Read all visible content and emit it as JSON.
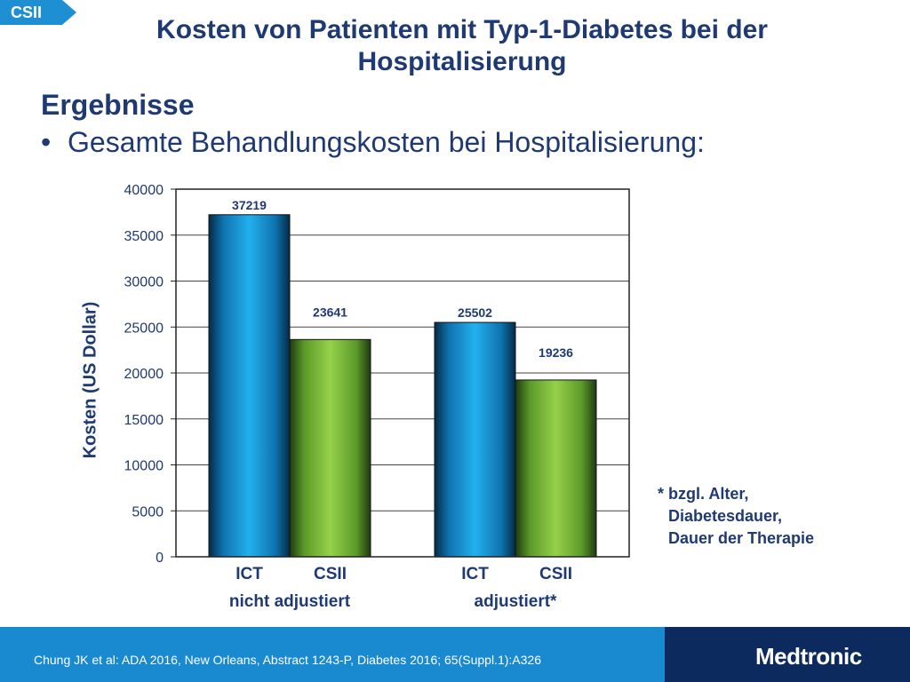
{
  "header": {
    "tag": "CSII",
    "title": "Kosten von Patienten mit Typ-1-Diabetes bei der Hospitalisierung"
  },
  "content": {
    "section_heading": "Ergebnisse",
    "bullet": "Gesamte Behandlungskosten bei Hospitalisierung:",
    "footnote": [
      "* bzgl. Alter,",
      "Diabetesdauer,",
      "Dauer der Therapie"
    ]
  },
  "chart_data": {
    "type": "bar",
    "title": "",
    "ylabel": "Kosten (US Dollar)",
    "ylim": [
      0,
      40000
    ],
    "yticks": [
      0,
      5000,
      10000,
      15000,
      20000,
      25000,
      30000,
      35000,
      40000
    ],
    "grid": true,
    "groups": [
      {
        "label": "nicht adjustiert",
        "categories": [
          "ICT",
          "CSII"
        ],
        "values": [
          37219,
          23641
        ]
      },
      {
        "label": "adjustiert*",
        "categories": [
          "ICT",
          "CSII"
        ],
        "values": [
          25502,
          19236
        ]
      }
    ],
    "colors": {
      "ICT": "#1aa3e0",
      "CSII": "#8cc63f"
    }
  },
  "footer": {
    "citation": "Chung JK et al: ADA 2016, New Orleans, Abstract 1243-P, Diabetes  2016; 65(Suppl.1):A326",
    "brand": "Medtronic"
  }
}
